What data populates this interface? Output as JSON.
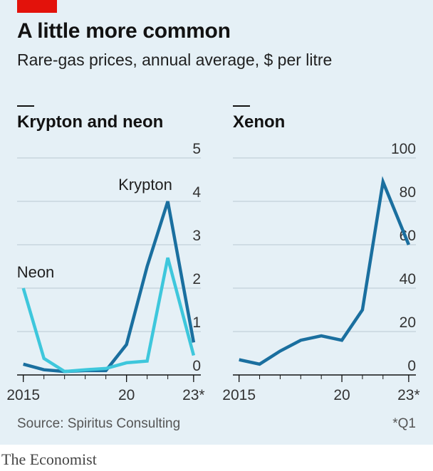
{
  "title": "A little more common",
  "subtitle": "Rare-gas prices, annual average, $ per litre",
  "source": "Source: Spiritus Consulting",
  "footnote": "*Q1",
  "brand": "The Economist",
  "colors": {
    "krypton": "#1a6f9f",
    "neon": "#3ec7dc",
    "grid": "#b9c8d2",
    "axis": "#121212",
    "label": "#333333"
  },
  "chart_data": [
    {
      "type": "line",
      "title": "Krypton and neon",
      "x": [
        2015,
        2016,
        2017,
        2018,
        2019,
        2020,
        2021,
        2022,
        2023.25
      ],
      "xlim": [
        2014.7,
        2023.6
      ],
      "xticks": [
        2015,
        2020,
        2023.25
      ],
      "xtick_labels": [
        "2015",
        "20",
        "23*"
      ],
      "ylim": [
        0,
        5
      ],
      "yticks": [
        0,
        1,
        2,
        3,
        4,
        5
      ],
      "series": [
        {
          "name": "Krypton",
          "color": "#1a6f9f",
          "values": [
            0.25,
            0.12,
            0.08,
            0.1,
            0.1,
            0.7,
            2.5,
            4.0,
            0.75
          ]
        },
        {
          "name": "Neon",
          "color": "#3ec7dc",
          "values": [
            2.0,
            0.38,
            0.08,
            0.12,
            0.15,
            0.28,
            0.32,
            2.7,
            0.45
          ]
        }
      ],
      "annotations": [
        "Krypton",
        "Neon"
      ]
    },
    {
      "type": "line",
      "title": "Xenon",
      "x": [
        2015,
        2016,
        2017,
        2018,
        2019,
        2020,
        2021,
        2022,
        2023.25
      ],
      "xlim": [
        2014.7,
        2023.6
      ],
      "xticks": [
        2015,
        2020,
        2023.25
      ],
      "xtick_labels": [
        "2015",
        "20",
        "23*"
      ],
      "ylim": [
        0,
        100
      ],
      "yticks": [
        0,
        20,
        40,
        60,
        80,
        100
      ],
      "series": [
        {
          "name": "Xenon",
          "color": "#1a6f9f",
          "values": [
            7,
            5,
            11,
            16,
            18,
            16,
            30,
            89,
            60
          ]
        }
      ]
    }
  ]
}
